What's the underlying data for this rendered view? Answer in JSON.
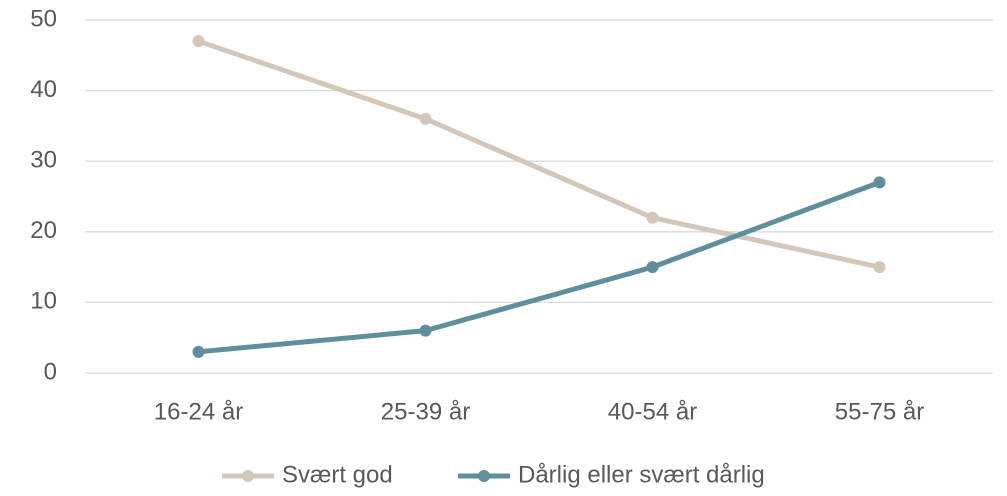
{
  "chart_data": {
    "type": "line",
    "categories": [
      "16-24 år",
      "25-39 år",
      "40-54 år",
      "55-75 år"
    ],
    "series": [
      {
        "name": "Svært god",
        "color": "#d3c7ba",
        "values": [
          47,
          36,
          22,
          15
        ]
      },
      {
        "name": "Dårlig eller svært dårlig",
        "color": "#5f8f9d",
        "values": [
          3,
          6,
          15,
          27
        ]
      }
    ],
    "ylim": [
      0,
      50
    ],
    "yticks": [
      0,
      10,
      20,
      30,
      40,
      50
    ],
    "grid": true,
    "legend": "bottom"
  }
}
